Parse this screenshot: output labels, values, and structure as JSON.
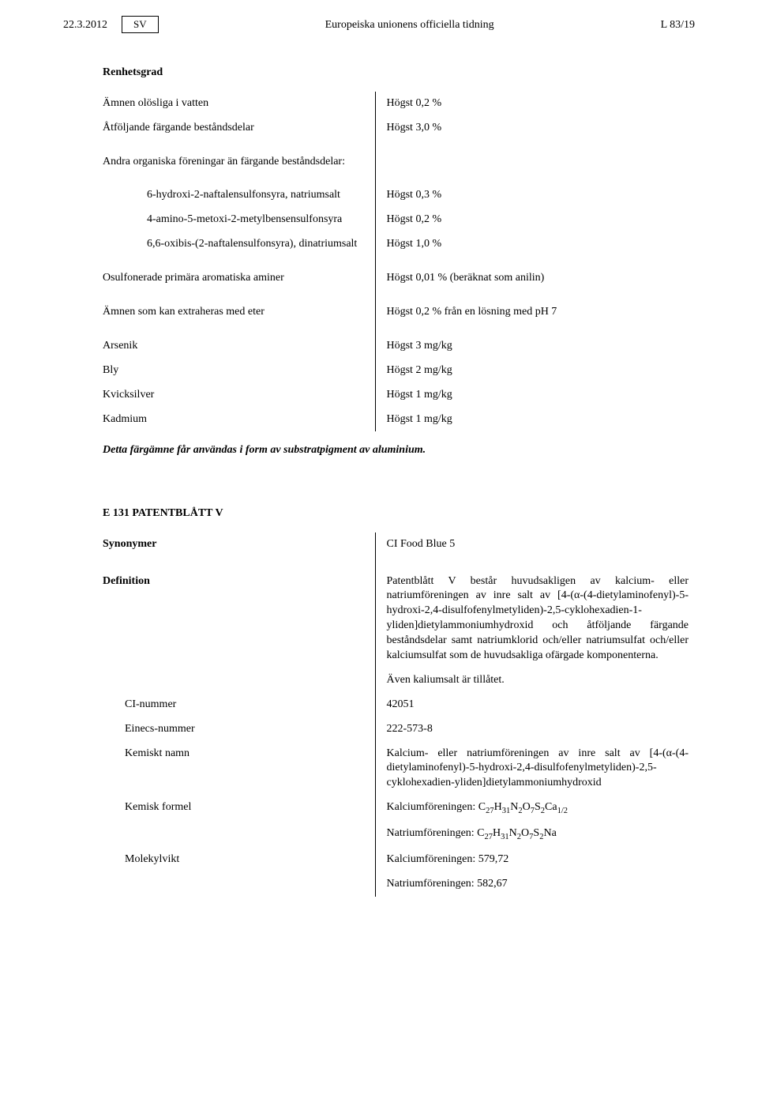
{
  "header": {
    "date": "22.3.2012",
    "lang": "SV",
    "journal": "Europeiska unionens officiella tidning",
    "pageRef": "L 83/19"
  },
  "section1": {
    "title": "Renhetsgrad",
    "rows": [
      {
        "label": "Ämnen olösliga i vatten",
        "value": "Högst 0,2 %",
        "cls": "outdent"
      },
      {
        "label": "Åtföljande färgande beståndsdelar",
        "value": "Högst 3,0 %",
        "cls": "outdent"
      },
      {
        "label": "Andra organiska föreningar än färgande beståndsdelar:",
        "value": "",
        "cls": "outdent"
      },
      {
        "label": "6-hydroxi-2-naftalensulfonsyra, natriumsalt",
        "value": "Högst 0,3 %",
        "cls": "sub"
      },
      {
        "label": "4-amino-5-metoxi-2-metylbensensulfonsyra",
        "value": "Högst 0,2 %",
        "cls": "sub"
      },
      {
        "label": "6,6-oxibis-(2-naftalensulfonsyra), dinatriumsalt",
        "value": "Högst 1,0 %",
        "cls": "sub"
      },
      {
        "label": "Osulfonerade primära aromatiska aminer",
        "value": "Högst 0,01 % (beräknat som anilin)",
        "cls": "outdent"
      },
      {
        "label": "Ämnen som kan extraheras med eter",
        "value": "Högst 0,2 % från en lösning med pH 7",
        "cls": "outdent"
      },
      {
        "label": "Arsenik",
        "value": "Högst 3 mg/kg",
        "cls": "outdent"
      },
      {
        "label": "Bly",
        "value": "Högst 2 mg/kg",
        "cls": "outdent"
      },
      {
        "label": "Kvicksilver",
        "value": "Högst 1 mg/kg",
        "cls": "outdent"
      },
      {
        "label": "Kadmium",
        "value": "Högst 1 mg/kg",
        "cls": "outdent"
      }
    ],
    "endnote": "Detta färgämne får användas i form av substratpigment av aluminium."
  },
  "section2": {
    "title": "E 131 PATENTBLÅTT V",
    "synonymerLabel": "Synonymer",
    "synonymerValue": "CI Food Blue 5",
    "definitionLabel": "Definition",
    "definitionValue": "Patentblått V består huvudsakligen av kalcium- eller natriumföreningen av inre salt av [4-(α-(4-dietylaminofenyl)-5-hydroxi-2,4-disulfofenylmetyliden)-2,5-cyklohexadien-1-yliden]dietylammoniumhydroxid och åtföljande färgande beståndsdelar samt natriumklorid och/eller natriumsulfat och/eller kalciumsulfat som de huvudsakliga ofärgade komponenterna.",
    "definitionExtra": "Även kaliumsalt är tillåtet.",
    "ciNummerLabel": "CI-nummer",
    "ciNummerValue": "42051",
    "einecsLabel": "Einecs-nummer",
    "einecsValue": "222-573-8",
    "kemNamnLabel": "Kemiskt namn",
    "kemNamnValue": "Kalcium- eller natriumföreningen av inre salt av [4-(α-(4-dietylaminofenyl)-5-hydroxi-2,4-disulfofenylmetyliden)-2,5-cyklohexadien-yliden]dietylammoniumhydroxid",
    "kemFormelLabel": "Kemisk formel",
    "kemFormelKalPrefix": "Kalciumföreningen: C",
    "kemFormelNatPrefix": "Natriumföreningen: C",
    "molLabel": "Molekylvikt",
    "molKal": "Kalciumföreningen: 579,72",
    "molNat": "Natriumföreningen: 582,67"
  }
}
